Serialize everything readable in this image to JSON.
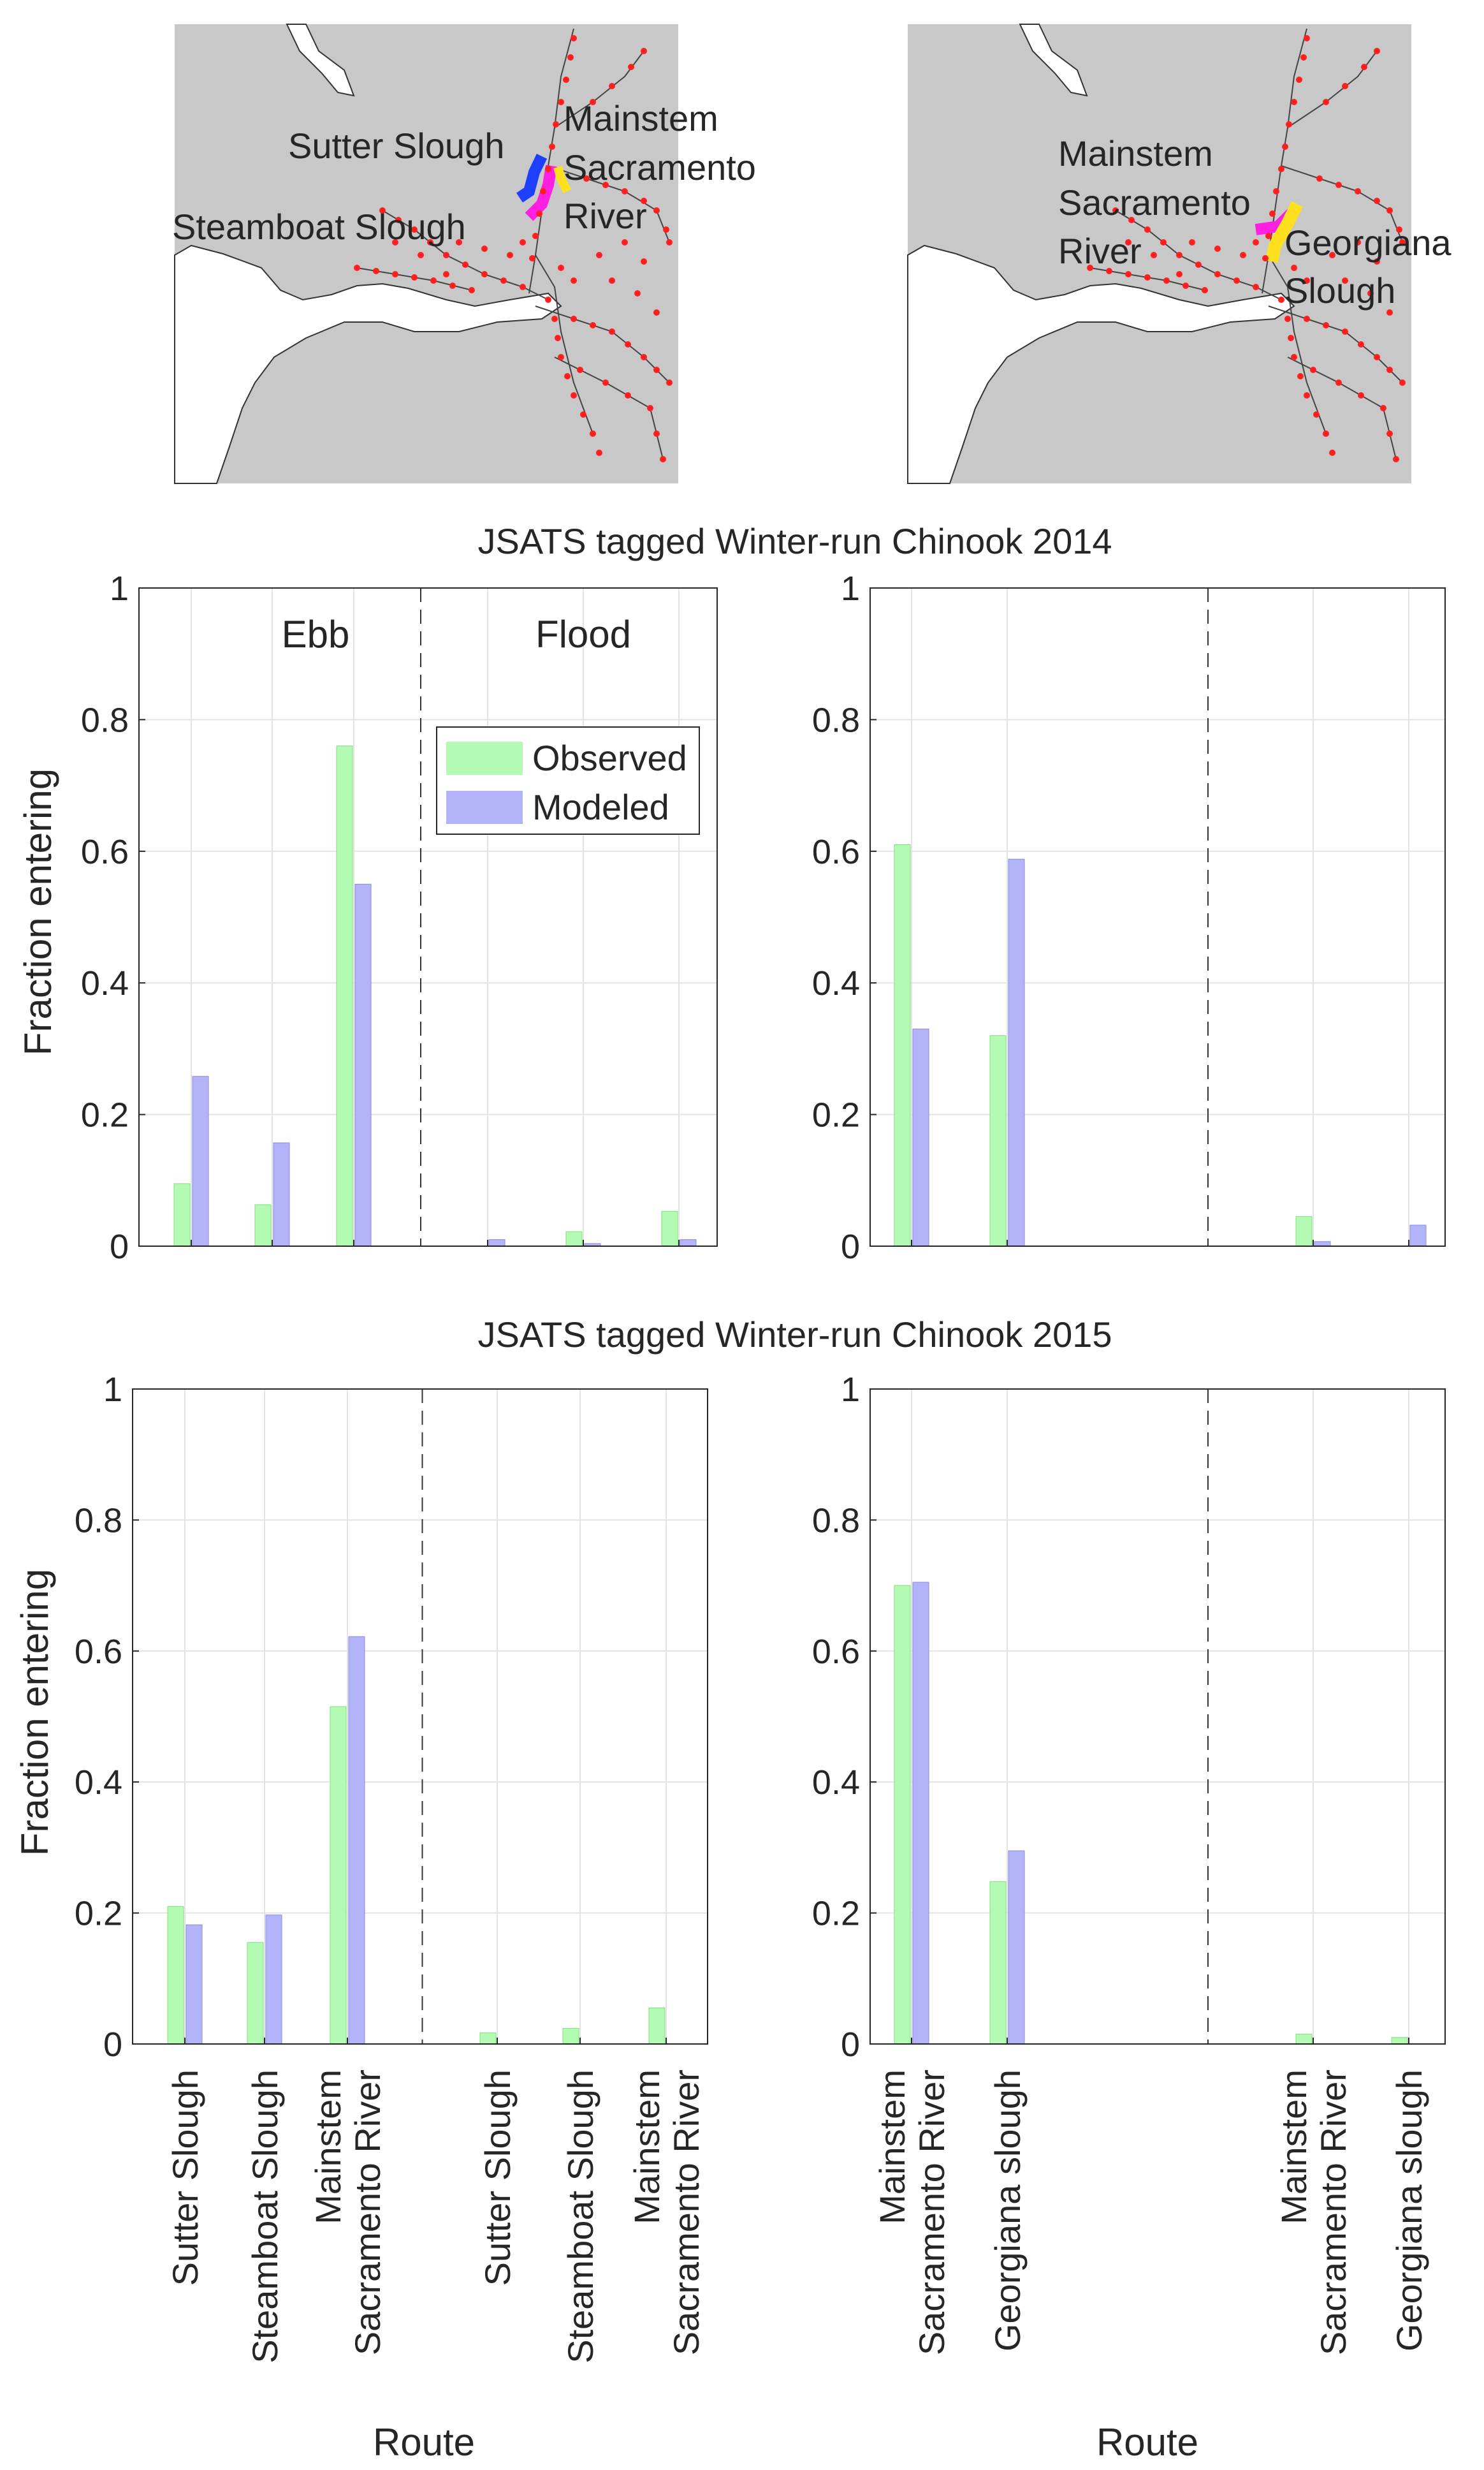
{
  "maps": [
    {
      "labels": [
        "Sutter Slough",
        "Steamboat Slough",
        "Mainstem",
        "Sacramento",
        "River"
      ]
    },
    {
      "labels": [
        "Mainstem",
        "Sacramento",
        "River",
        "Georgiana",
        "Slough"
      ]
    }
  ],
  "titles": [
    "JSATS tagged Winter-run Chinook 2014",
    "JSATS tagged Winter-run Chinook 2015"
  ],
  "colors": {
    "observed": "#b3fab3",
    "modeled": "#b3b3fa",
    "observed_edge": "#7fe07f",
    "modeled_edge": "#8a8ae0"
  },
  "chart_data": [
    {
      "type": "bar",
      "panel": "2014 left",
      "categories": [
        "Sutter Slough",
        "Steamboat Slough",
        "Mainstem Sacramento River",
        "Sutter Slough",
        "Steamboat Slough",
        "Mainstem Sacramento River"
      ],
      "series": [
        {
          "name": "Observed",
          "values": [
            0.095,
            0.063,
            0.76,
            0,
            0.022,
            0.053
          ]
        },
        {
          "name": "Modeled",
          "values": [
            0.258,
            0.157,
            0.55,
            0.01,
            0.004,
            0.01
          ]
        }
      ],
      "ylabel": "Fraction entering",
      "yticks": [
        "0",
        "0.2",
        "0.4",
        "0.6",
        "0.8",
        "1"
      ],
      "ylim": [
        0,
        1
      ],
      "regions": [
        "Ebb",
        "Flood"
      ],
      "legend": {
        "position": "inside-right",
        "entries": [
          "Observed",
          "Modeled"
        ]
      },
      "grid": true
    },
    {
      "type": "bar",
      "panel": "2014 right",
      "categories": [
        "Mainstem Sacramento River",
        "Georgiana slough",
        "",
        "Mainstem Sacramento River",
        "Georgiana slough"
      ],
      "series": [
        {
          "name": "Observed",
          "values": [
            0.61,
            0.32,
            0,
            0.045,
            0
          ]
        },
        {
          "name": "Modeled",
          "values": [
            0.33,
            0.588,
            0,
            0.007,
            0.032
          ]
        }
      ],
      "yticks": [
        "0",
        "0.2",
        "0.4",
        "0.6",
        "0.8",
        "1"
      ],
      "ylim": [
        0,
        1
      ],
      "grid": true
    },
    {
      "type": "bar",
      "panel": "2015 left",
      "categories": [
        "Sutter Slough",
        "Steamboat Slough",
        "Mainstem Sacramento River",
        "Sutter Slough",
        "Steamboat Slough",
        "Mainstem Sacramento River"
      ],
      "series": [
        {
          "name": "Observed",
          "values": [
            0.21,
            0.155,
            0.515,
            0.017,
            0.024,
            0.055
          ]
        },
        {
          "name": "Modeled",
          "values": [
            0.182,
            0.197,
            0.622,
            0,
            0,
            0
          ]
        }
      ],
      "ylabel": "Fraction entering",
      "xlabel": "Route",
      "yticks": [
        "0",
        "0.2",
        "0.4",
        "0.6",
        "0.8",
        "1"
      ],
      "ylim": [
        0,
        1
      ],
      "xticklabels": [
        [
          "Sutter Slough"
        ],
        [
          "Steamboat Slough"
        ],
        [
          "Mainstem",
          "Sacramento River"
        ],
        [
          "Sutter Slough"
        ],
        [
          "Steamboat Slough"
        ],
        [
          "Mainstem",
          "Sacramento River"
        ]
      ],
      "grid": true
    },
    {
      "type": "bar",
      "panel": "2015 right",
      "categories": [
        "Mainstem Sacramento River",
        "Georgiana slough",
        "",
        "Mainstem Sacramento River",
        "Georgiana slough"
      ],
      "series": [
        {
          "name": "Observed",
          "values": [
            0.7,
            0.248,
            0,
            0.015,
            0.01
          ]
        },
        {
          "name": "Modeled",
          "values": [
            0.705,
            0.295,
            0,
            0,
            0
          ]
        }
      ],
      "xlabel": "Route",
      "yticks": [
        "0",
        "0.2",
        "0.4",
        "0.6",
        "0.8",
        "1"
      ],
      "ylim": [
        0,
        1
      ],
      "xticklabels": [
        [
          "Mainstem",
          "Sacramento River"
        ],
        [
          "Georgiana slough"
        ],
        [],
        [
          "Mainstem",
          "Sacramento River"
        ],
        [
          "Georgiana slough"
        ]
      ],
      "grid": true
    }
  ]
}
